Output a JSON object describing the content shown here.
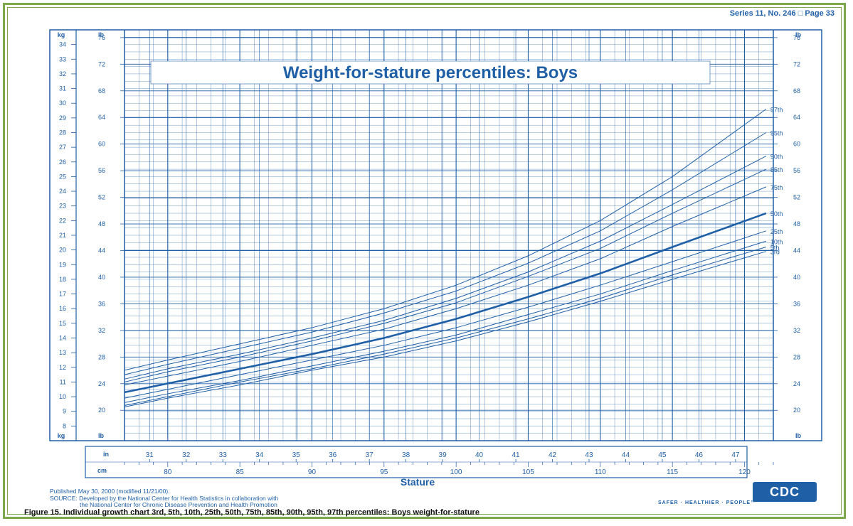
{
  "header": {
    "series": "Series 11, No. 246 □ Page 33"
  },
  "chart_data": {
    "type": "line",
    "title": "Weight-for-stature percentiles: Boys",
    "xlabel": "Stature",
    "x_unit_primary": "cm",
    "x_unit_secondary": "in",
    "y_unit_left": "kg",
    "y_unit_lb": "lb",
    "xlim": [
      77,
      122
    ],
    "ylim": [
      7,
      35
    ],
    "x_ticks_cm": [
      "80",
      "85",
      "90",
      "95",
      "100",
      "105",
      "110",
      "115",
      "120"
    ],
    "x_ticks_in": [
      "31",
      "32",
      "33",
      "34",
      "35",
      "36",
      "37",
      "38",
      "39",
      "40",
      "41",
      "42",
      "43",
      "44",
      "45",
      "46",
      "47"
    ],
    "y_ticks_kg": [
      "8",
      "9",
      "10",
      "11",
      "12",
      "13",
      "14",
      "15",
      "16",
      "17",
      "18",
      "19",
      "20",
      "21",
      "22",
      "23",
      "24",
      "25",
      "26",
      "27",
      "28",
      "29",
      "30",
      "31",
      "32",
      "33",
      "34"
    ],
    "y_ticks_lb": [
      "20",
      "24",
      "28",
      "32",
      "36",
      "40",
      "44",
      "48",
      "52",
      "56",
      "60",
      "64",
      "68",
      "72",
      "76"
    ],
    "x": [
      77,
      80,
      85,
      90,
      95,
      100,
      105,
      110,
      115,
      121.5
    ],
    "series": [
      {
        "name": "97th",
        "values": [
          11.8,
          12.5,
          13.6,
          14.7,
          16.0,
          17.6,
          19.6,
          22.0,
          25.0,
          29.6
        ]
      },
      {
        "name": "95th",
        "values": [
          11.5,
          12.2,
          13.3,
          14.4,
          15.7,
          17.2,
          19.1,
          21.3,
          24.1,
          28.0
        ]
      },
      {
        "name": "90th",
        "values": [
          11.2,
          11.9,
          12.9,
          14.0,
          15.2,
          16.7,
          18.5,
          20.6,
          23.1,
          26.4
        ]
      },
      {
        "name": "85th",
        "values": [
          11.0,
          11.7,
          12.7,
          13.8,
          15.0,
          16.4,
          18.2,
          20.1,
          22.5,
          25.5
        ]
      },
      {
        "name": "75th",
        "values": [
          10.8,
          11.4,
          12.4,
          13.5,
          14.6,
          16.0,
          17.6,
          19.4,
          21.6,
          24.3
        ]
      },
      {
        "name": "50th",
        "values": [
          10.3,
          10.9,
          11.9,
          12.9,
          14.0,
          15.3,
          16.8,
          18.4,
          20.2,
          22.5
        ]
      },
      {
        "name": "25th",
        "values": [
          9.9,
          10.5,
          11.5,
          12.5,
          13.5,
          14.7,
          16.1,
          17.6,
          19.2,
          21.3
        ]
      },
      {
        "name": "10th",
        "values": [
          9.6,
          10.2,
          11.1,
          12.1,
          13.1,
          14.2,
          15.6,
          17.0,
          18.6,
          20.6
        ]
      },
      {
        "name": "5th",
        "values": [
          9.4,
          10.0,
          11.0,
          11.9,
          12.9,
          14.0,
          15.3,
          16.7,
          18.3,
          20.2
        ]
      },
      {
        "name": "3rd",
        "values": [
          9.3,
          9.9,
          10.8,
          11.8,
          12.7,
          13.8,
          15.1,
          16.5,
          18.0,
          19.9
        ]
      }
    ],
    "colors": {
      "line": "#1f5fa6",
      "grid": "#1f5fa6",
      "background": "#ffffff"
    }
  },
  "footer": {
    "published": "Published May 30, 2000 (modified 11/21/00).",
    "source_line1": "SOURCE: Developed by the National Center for Health Statistics in collaboration with",
    "source_line2": "the National Center for Chronic Disease Prevention and Health Promotion",
    "caption": "Figure 15. Individual growth chart 3rd, 5th, 10th, 25th, 50th, 75th, 85th, 90th, 95th, 97th percentiles: Boys weight-for-stature",
    "logo": "CDC",
    "tagline": "SAFER · HEALTHIER · PEOPLE™"
  }
}
